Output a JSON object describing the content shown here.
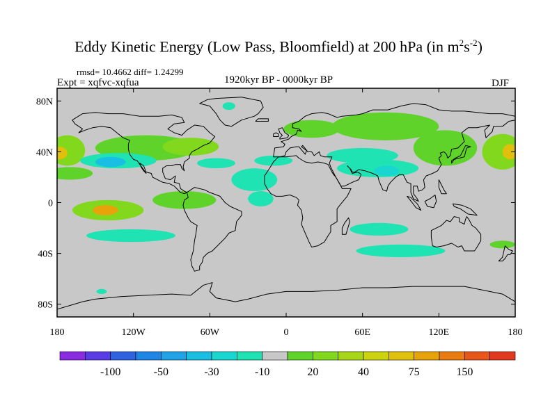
{
  "header": {
    "title_main": "Eddy Kinetic Energy (Low Pass, Bloomfield) at 200 hPa (in m",
    "title_sup1": "2",
    "title_mid": "s",
    "title_sup2": "-2",
    "title_end": ")",
    "stats": "rmsd= 10.4662 diff= 1.24299",
    "experiment": "Expt = xqfvc-xqfua",
    "period": "1920kyr BP - 0000kyr BP",
    "season": "DJF"
  },
  "colors": {
    "land_outline": "#000000",
    "neutral_fill": "#c8c8c8",
    "frame": "#000000"
  },
  "chart_data": {
    "type": "heatmap",
    "projection": "cylindrical-equidistant",
    "variable": "Eddy Kinetic Energy difference",
    "units": "m2 s-2",
    "xlim": [
      -180,
      180
    ],
    "ylim": [
      -90,
      90
    ],
    "x_ticks": [
      {
        "value": -180,
        "label": "180"
      },
      {
        "value": -120,
        "label": "120W"
      },
      {
        "value": -60,
        "label": "60W"
      },
      {
        "value": 0,
        "label": "0"
      },
      {
        "value": 60,
        "label": "60E"
      },
      {
        "value": 120,
        "label": "120E"
      },
      {
        "value": 180,
        "label": "180"
      }
    ],
    "y_ticks": [
      {
        "value": 80,
        "label": "80N"
      },
      {
        "value": 40,
        "label": "40N"
      },
      {
        "value": 0,
        "label": "0"
      },
      {
        "value": -40,
        "label": "40S"
      },
      {
        "value": -80,
        "label": "80S"
      }
    ],
    "colorbar": {
      "bins": [
        {
          "color": "#8a2be2"
        },
        {
          "color": "#5a3ce6"
        },
        {
          "color": "#2f63e0"
        },
        {
          "color": "#1f86e6"
        },
        {
          "color": "#1fa2e6"
        },
        {
          "color": "#19bfe3"
        },
        {
          "color": "#19d6d0"
        },
        {
          "color": "#20e3b4"
        },
        {
          "color": "#c8c8c8"
        },
        {
          "color": "#5fd32a"
        },
        {
          "color": "#82d81c"
        },
        {
          "color": "#a8d616"
        },
        {
          "color": "#cdd40f"
        },
        {
          "color": "#e0c00c"
        },
        {
          "color": "#e8a20a"
        },
        {
          "color": "#ea7a12"
        },
        {
          "color": "#e8561c"
        },
        {
          "color": "#e23a1f"
        }
      ],
      "labels": [
        {
          "text": "-100",
          "after_bin": 1
        },
        {
          "text": "-50",
          "after_bin": 3
        },
        {
          "text": "-30",
          "after_bin": 5
        },
        {
          "text": "-10",
          "after_bin": 7
        },
        {
          "text": "20",
          "after_bin": 9
        },
        {
          "text": "40",
          "after_bin": 11
        },
        {
          "text": "75",
          "after_bin": 13
        },
        {
          "text": "150",
          "after_bin": 15
        }
      ]
    },
    "anomalies": [
      {
        "lon": -172,
        "lat": 41,
        "rlon": 14,
        "rlat": 12,
        "level": 10,
        "name": "n-pacific-west-positive"
      },
      {
        "lon": -178,
        "lat": 39,
        "rlon": 6,
        "rlat": 5,
        "level": 13,
        "name": "n-pacific-west-core"
      },
      {
        "lon": -110,
        "lat": 43,
        "rlon": 40,
        "rlat": 10,
        "level": 9,
        "name": "n-america-positive"
      },
      {
        "lon": -75,
        "lat": 44,
        "rlon": 22,
        "rlat": 7,
        "level": 10,
        "name": "n-america-east-positive"
      },
      {
        "lon": -132,
        "lat": 33,
        "rlon": 30,
        "rlat": 6,
        "level": 7,
        "name": "n-pacific-negative-band"
      },
      {
        "lon": -138,
        "lat": 32,
        "rlon": 12,
        "rlat": 4,
        "level": 5,
        "name": "n-pacific-negative-core"
      },
      {
        "lon": -55,
        "lat": 31,
        "rlon": 15,
        "rlat": 4,
        "level": 7,
        "name": "w-atlantic-negative"
      },
      {
        "lon": -10,
        "lat": 33,
        "rlon": 15,
        "rlat": 4,
        "level": 7,
        "name": "e-atlantic-negative"
      },
      {
        "lon": 60,
        "lat": 37,
        "rlon": 28,
        "rlat": 6,
        "level": 7,
        "name": "middle-east-negative"
      },
      {
        "lon": 72,
        "lat": 27,
        "rlon": 32,
        "rlat": 7,
        "level": 7,
        "name": "s-asia-negative"
      },
      {
        "lon": 79,
        "lat": 25,
        "rlon": 10,
        "rlat": 4,
        "level": 6,
        "name": "s-asia-negative-core"
      },
      {
        "lon": -25,
        "lat": 18,
        "rlon": 18,
        "rlat": 9,
        "level": 7,
        "name": "tropical-atlantic-negative"
      },
      {
        "lon": -20,
        "lat": 3,
        "rlon": 10,
        "rlat": 6,
        "level": 7,
        "name": "equatorial-atlantic-negative"
      },
      {
        "lon": 78,
        "lat": 60,
        "rlon": 42,
        "rlat": 11,
        "level": 9,
        "name": "siberia-positive"
      },
      {
        "lon": 20,
        "lat": 58,
        "rlon": 22,
        "rlat": 7,
        "level": 9,
        "name": "europe-positive"
      },
      {
        "lon": 125,
        "lat": 43,
        "rlon": 25,
        "rlat": 14,
        "level": 9,
        "name": "e-asia-positive"
      },
      {
        "lon": 170,
        "lat": 40,
        "rlon": 16,
        "rlat": 14,
        "level": 10,
        "name": "n-pacific-east-positive"
      },
      {
        "lon": 176,
        "lat": 40,
        "rlon": 6,
        "rlat": 6,
        "level": 13,
        "name": "n-pacific-east-core"
      },
      {
        "lon": -170,
        "lat": 23,
        "rlon": 18,
        "rlat": 5,
        "level": 9,
        "name": "subtropical-pacific-positive"
      },
      {
        "lon": -140,
        "lat": -6,
        "rlon": 28,
        "rlat": 8,
        "level": 10,
        "name": "s-pacific-positive"
      },
      {
        "lon": -142,
        "lat": -6,
        "rlon": 10,
        "rlat": 4,
        "level": 14,
        "name": "s-pacific-core"
      },
      {
        "lon": -80,
        "lat": 2,
        "rlon": 25,
        "rlat": 7,
        "level": 9,
        "name": "tropical-east-pacific-positive"
      },
      {
        "lon": -122,
        "lat": -26,
        "rlon": 35,
        "rlat": 5,
        "level": 7,
        "name": "s-pacific-negative-band"
      },
      {
        "lon": 73,
        "lat": -21,
        "rlon": 23,
        "rlat": 5,
        "level": 7,
        "name": "indian-ocean-negative"
      },
      {
        "lon": 90,
        "lat": -38,
        "rlon": 35,
        "rlat": 5,
        "level": 7,
        "name": "southern-indian-negative"
      },
      {
        "lon": 170,
        "lat": -33,
        "rlon": 10,
        "rlat": 3,
        "level": 9,
        "name": "tasman-positive"
      },
      {
        "lon": -145,
        "lat": -70,
        "rlon": 4,
        "rlat": 2,
        "level": 7,
        "name": "antarctic-negative-patch"
      },
      {
        "lon": -45,
        "lat": 76,
        "rlon": 5,
        "rlat": 3,
        "level": 7,
        "name": "greenland-negative-patch"
      }
    ]
  }
}
